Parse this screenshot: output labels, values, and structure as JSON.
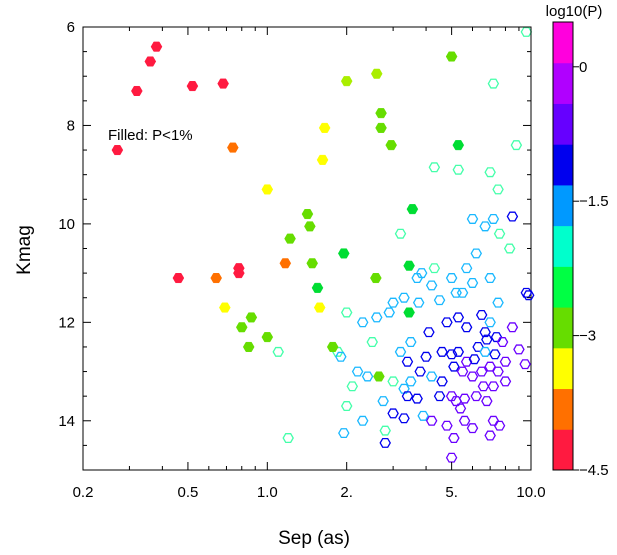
{
  "chart_data": {
    "type": "scatter",
    "xlabel": "Sep (as)",
    "ylabel": "Kmag",
    "xscale": "log",
    "xlim": [
      0.2,
      10.0
    ],
    "ylim": [
      15,
      6
    ],
    "x_ticks": [
      {
        "value": 0.2,
        "label": "0.2"
      },
      {
        "value": 0.5,
        "label": "0.5"
      },
      {
        "value": 1.0,
        "label": "1.0"
      },
      {
        "value": 2.0,
        "label": "2."
      },
      {
        "value": 5.0,
        "label": "5."
      },
      {
        "value": 10.0,
        "label": "10.0"
      }
    ],
    "y_ticks": [
      {
        "value": 6,
        "label": "6"
      },
      {
        "value": 8,
        "label": "8"
      },
      {
        "value": 10,
        "label": "10"
      },
      {
        "value": 12,
        "label": "12"
      },
      {
        "value": 14,
        "label": "14"
      }
    ],
    "annotation": "Filled: P<1%",
    "colorbar": {
      "title": "log10(P)",
      "range": [
        -4.5,
        0.5
      ],
      "ticks": [
        {
          "value": 0,
          "label": "0"
        },
        {
          "value": -1.5,
          "label": "−1.5"
        },
        {
          "value": -3,
          "label": "−3"
        },
        {
          "value": -4.5,
          "label": "−4.5"
        }
      ],
      "bands": [
        "#ff1a40",
        "#ff7000",
        "#ffff00",
        "#66dd00",
        "#00ff44",
        "#00ffcc",
        "#0099ff",
        "#0000ee",
        "#6600ff",
        "#b000ff",
        "#ff00dd"
      ]
    },
    "marker": "hexagon",
    "filled_points": [
      {
        "x": 0.27,
        "y": 8.5,
        "c": "#ff1a40"
      },
      {
        "x": 0.32,
        "y": 7.3,
        "c": "#ff1a40"
      },
      {
        "x": 0.36,
        "y": 6.7,
        "c": "#ff1a40"
      },
      {
        "x": 0.38,
        "y": 6.4,
        "c": "#ff1a40"
      },
      {
        "x": 0.46,
        "y": 11.1,
        "c": "#ff1a40"
      },
      {
        "x": 0.52,
        "y": 7.2,
        "c": "#ff1a40"
      },
      {
        "x": 0.64,
        "y": 11.1,
        "c": "#ff7000"
      },
      {
        "x": 0.68,
        "y": 7.15,
        "c": "#ff1a40"
      },
      {
        "x": 0.74,
        "y": 8.45,
        "c": "#ff7000"
      },
      {
        "x": 0.78,
        "y": 10.9,
        "c": "#ff1a40"
      },
      {
        "x": 0.78,
        "y": 11.0,
        "c": "#ff1a40"
      },
      {
        "x": 1.17,
        "y": 10.8,
        "c": "#ff7000"
      },
      {
        "x": 0.69,
        "y": 11.7,
        "c": "#ffff00"
      },
      {
        "x": 1.0,
        "y": 9.3,
        "c": "#ffff00"
      },
      {
        "x": 1.58,
        "y": 11.7,
        "c": "#ffff00"
      },
      {
        "x": 1.62,
        "y": 8.7,
        "c": "#ffff00"
      },
      {
        "x": 1.65,
        "y": 8.05,
        "c": "#ffff00"
      },
      {
        "x": 2.0,
        "y": 7.1,
        "c": "#aaee00"
      },
      {
        "x": 2.6,
        "y": 6.95,
        "c": "#aaee00"
      },
      {
        "x": 2.7,
        "y": 8.05,
        "c": "#66dd00"
      },
      {
        "x": 2.7,
        "y": 7.75,
        "c": "#66dd00"
      },
      {
        "x": 2.95,
        "y": 8.4,
        "c": "#66dd00"
      },
      {
        "x": 0.8,
        "y": 12.1,
        "c": "#66dd00"
      },
      {
        "x": 0.85,
        "y": 12.5,
        "c": "#66dd00"
      },
      {
        "x": 0.87,
        "y": 11.9,
        "c": "#66dd00"
      },
      {
        "x": 1.0,
        "y": 12.3,
        "c": "#66dd00"
      },
      {
        "x": 1.22,
        "y": 10.3,
        "c": "#66dd00"
      },
      {
        "x": 1.42,
        "y": 9.8,
        "c": "#66dd00"
      },
      {
        "x": 1.48,
        "y": 10.8,
        "c": "#66dd00"
      },
      {
        "x": 1.45,
        "y": 10.05,
        "c": "#66dd00"
      },
      {
        "x": 1.55,
        "y": 11.3,
        "c": "#00dd33"
      },
      {
        "x": 1.95,
        "y": 10.6,
        "c": "#00dd33"
      },
      {
        "x": 1.77,
        "y": 12.5,
        "c": "#66dd00"
      },
      {
        "x": 2.58,
        "y": 11.1,
        "c": "#66dd00"
      },
      {
        "x": 2.65,
        "y": 13.1,
        "c": "#66dd00"
      },
      {
        "x": 3.45,
        "y": 10.85,
        "c": "#00dd33"
      },
      {
        "x": 3.55,
        "y": 9.7,
        "c": "#00dd33"
      },
      {
        "x": 3.45,
        "y": 11.8,
        "c": "#00dd33"
      },
      {
        "x": 5.0,
        "y": 6.6,
        "c": "#66dd00"
      },
      {
        "x": 5.3,
        "y": 8.4,
        "c": "#00dd33"
      }
    ],
    "open_points": [
      {
        "x": 9.6,
        "y": 6.1,
        "c": "#44ffaa"
      },
      {
        "x": 7.2,
        "y": 7.15,
        "c": "#44ffaa"
      },
      {
        "x": 8.8,
        "y": 8.4,
        "c": "#44ffaa"
      },
      {
        "x": 5.3,
        "y": 8.9,
        "c": "#44ffaa"
      },
      {
        "x": 7.0,
        "y": 8.95,
        "c": "#44ffaa"
      },
      {
        "x": 4.3,
        "y": 8.85,
        "c": "#44ffaa"
      },
      {
        "x": 7.5,
        "y": 9.3,
        "c": "#44ffaa"
      },
      {
        "x": 6.0,
        "y": 9.9,
        "c": "#1ab8ff"
      },
      {
        "x": 6.7,
        "y": 10.05,
        "c": "#1ab8ff"
      },
      {
        "x": 7.2,
        "y": 9.9,
        "c": "#1ab8ff"
      },
      {
        "x": 8.5,
        "y": 9.85,
        "c": "#0000ee"
      },
      {
        "x": 7.6,
        "y": 10.2,
        "c": "#44ffaa"
      },
      {
        "x": 3.2,
        "y": 10.2,
        "c": "#44ffaa"
      },
      {
        "x": 8.3,
        "y": 10.5,
        "c": "#44ffaa"
      },
      {
        "x": 6.2,
        "y": 10.6,
        "c": "#1ab8ff"
      },
      {
        "x": 5.7,
        "y": 10.9,
        "c": "#1ab8ff"
      },
      {
        "x": 4.3,
        "y": 10.9,
        "c": "#44ffaa"
      },
      {
        "x": 3.7,
        "y": 11.1,
        "c": "#1ab8ff"
      },
      {
        "x": 3.85,
        "y": 11.0,
        "c": "#1ab8ff"
      },
      {
        "x": 4.2,
        "y": 11.25,
        "c": "#1ab8ff"
      },
      {
        "x": 3.0,
        "y": 11.6,
        "c": "#1ab8ff"
      },
      {
        "x": 3.3,
        "y": 11.5,
        "c": "#1ab8ff"
      },
      {
        "x": 2.9,
        "y": 11.8,
        "c": "#1ab8ff"
      },
      {
        "x": 2.6,
        "y": 11.9,
        "c": "#1ab8ff"
      },
      {
        "x": 2.0,
        "y": 11.8,
        "c": "#44ffaa"
      },
      {
        "x": 3.75,
        "y": 11.6,
        "c": "#1ab8ff"
      },
      {
        "x": 4.5,
        "y": 11.55,
        "c": "#1ab8ff"
      },
      {
        "x": 5.0,
        "y": 11.1,
        "c": "#1ab8ff"
      },
      {
        "x": 5.2,
        "y": 11.4,
        "c": "#1ab8ff"
      },
      {
        "x": 5.5,
        "y": 11.4,
        "c": "#1ab8ff"
      },
      {
        "x": 6.0,
        "y": 11.2,
        "c": "#1ab8ff"
      },
      {
        "x": 7.0,
        "y": 11.1,
        "c": "#1ab8ff"
      },
      {
        "x": 9.8,
        "y": 11.45,
        "c": "#0000ee"
      },
      {
        "x": 9.6,
        "y": 11.4,
        "c": "#0000ee"
      },
      {
        "x": 7.5,
        "y": 11.6,
        "c": "#1ab8ff"
      },
      {
        "x": 5.3,
        "y": 11.9,
        "c": "#0000ee"
      },
      {
        "x": 5.7,
        "y": 12.1,
        "c": "#0000ee"
      },
      {
        "x": 4.8,
        "y": 12.0,
        "c": "#0000ee"
      },
      {
        "x": 4.1,
        "y": 12.2,
        "c": "#0000ee"
      },
      {
        "x": 6.5,
        "y": 11.85,
        "c": "#0000ee"
      },
      {
        "x": 7.0,
        "y": 12.0,
        "c": "#1ab8ff"
      },
      {
        "x": 6.7,
        "y": 12.2,
        "c": "#0000ee"
      },
      {
        "x": 6.8,
        "y": 12.35,
        "c": "#0000ee"
      },
      {
        "x": 7.4,
        "y": 12.3,
        "c": "#0000ee"
      },
      {
        "x": 6.3,
        "y": 12.5,
        "c": "#0000ee"
      },
      {
        "x": 3.5,
        "y": 12.4,
        "c": "#1ab8ff"
      },
      {
        "x": 3.2,
        "y": 12.6,
        "c": "#1ab8ff"
      },
      {
        "x": 3.4,
        "y": 12.8,
        "c": "#0000ee"
      },
      {
        "x": 2.5,
        "y": 12.4,
        "c": "#44ffaa"
      },
      {
        "x": 2.3,
        "y": 12.0,
        "c": "#1ab8ff"
      },
      {
        "x": 1.85,
        "y": 12.6,
        "c": "#44ffaa"
      },
      {
        "x": 1.9,
        "y": 12.7,
        "c": "#1ab8ff"
      },
      {
        "x": 1.1,
        "y": 12.6,
        "c": "#44ffaa"
      },
      {
        "x": 4.0,
        "y": 12.7,
        "c": "#0000ee"
      },
      {
        "x": 4.6,
        "y": 12.6,
        "c": "#0000ee"
      },
      {
        "x": 5.0,
        "y": 12.65,
        "c": "#0000ee"
      },
      {
        "x": 5.3,
        "y": 12.6,
        "c": "#0000ee"
      },
      {
        "x": 5.1,
        "y": 12.9,
        "c": "#0000ee"
      },
      {
        "x": 5.7,
        "y": 12.8,
        "c": "#6a00ff"
      },
      {
        "x": 5.5,
        "y": 13.0,
        "c": "#6a00ff"
      },
      {
        "x": 6.1,
        "y": 12.75,
        "c": "#0000ee"
      },
      {
        "x": 6.7,
        "y": 12.6,
        "c": "#1ab8ff"
      },
      {
        "x": 7.3,
        "y": 12.65,
        "c": "#0000ee"
      },
      {
        "x": 7.8,
        "y": 12.4,
        "c": "#6a00ff"
      },
      {
        "x": 8.5,
        "y": 12.1,
        "c": "#6a00ff"
      },
      {
        "x": 9.0,
        "y": 12.55,
        "c": "#6a00ff"
      },
      {
        "x": 9.5,
        "y": 12.85,
        "c": "#6a00ff"
      },
      {
        "x": 3.8,
        "y": 13.0,
        "c": "#0000ee"
      },
      {
        "x": 4.2,
        "y": 13.1,
        "c": "#1ab8ff"
      },
      {
        "x": 3.5,
        "y": 13.2,
        "c": "#1ab8ff"
      },
      {
        "x": 3.3,
        "y": 13.35,
        "c": "#1ab8ff"
      },
      {
        "x": 3.0,
        "y": 13.2,
        "c": "#44ffaa"
      },
      {
        "x": 2.4,
        "y": 13.1,
        "c": "#1ab8ff"
      },
      {
        "x": 2.2,
        "y": 13.0,
        "c": "#1ab8ff"
      },
      {
        "x": 2.1,
        "y": 13.3,
        "c": "#44ffaa"
      },
      {
        "x": 4.6,
        "y": 13.2,
        "c": "#0000ee"
      },
      {
        "x": 4.5,
        "y": 13.5,
        "c": "#0000ee"
      },
      {
        "x": 3.7,
        "y": 13.55,
        "c": "#0000ee"
      },
      {
        "x": 3.4,
        "y": 13.5,
        "c": "#0000ee"
      },
      {
        "x": 6.0,
        "y": 13.1,
        "c": "#6a00ff"
      },
      {
        "x": 6.5,
        "y": 13.0,
        "c": "#6a00ff"
      },
      {
        "x": 7.0,
        "y": 12.9,
        "c": "#6a00ff"
      },
      {
        "x": 7.5,
        "y": 13.0,
        "c": "#6a00ff"
      },
      {
        "x": 8.0,
        "y": 12.8,
        "c": "#6a00ff"
      },
      {
        "x": 7.2,
        "y": 13.3,
        "c": "#6a00ff"
      },
      {
        "x": 6.6,
        "y": 13.3,
        "c": "#6a00ff"
      },
      {
        "x": 8.0,
        "y": 13.2,
        "c": "#6a00ff"
      },
      {
        "x": 6.2,
        "y": 13.5,
        "c": "#6a00ff"
      },
      {
        "x": 5.6,
        "y": 13.55,
        "c": "#6a00ff"
      },
      {
        "x": 5.2,
        "y": 13.6,
        "c": "#6a00ff"
      },
      {
        "x": 5.0,
        "y": 13.5,
        "c": "#6a00ff"
      },
      {
        "x": 5.4,
        "y": 13.75,
        "c": "#6a00ff"
      },
      {
        "x": 6.8,
        "y": 13.6,
        "c": "#6a00ff"
      },
      {
        "x": 2.0,
        "y": 13.7,
        "c": "#44ffaa"
      },
      {
        "x": 2.75,
        "y": 13.6,
        "c": "#1ab8ff"
      },
      {
        "x": 3.0,
        "y": 13.85,
        "c": "#0000ee"
      },
      {
        "x": 3.3,
        "y": 13.95,
        "c": "#0000ee"
      },
      {
        "x": 3.9,
        "y": 13.9,
        "c": "#1ab8ff"
      },
      {
        "x": 4.2,
        "y": 14.0,
        "c": "#6a00ff"
      },
      {
        "x": 2.3,
        "y": 14.0,
        "c": "#1ab8ff"
      },
      {
        "x": 2.8,
        "y": 14.2,
        "c": "#44ffaa"
      },
      {
        "x": 1.2,
        "y": 14.35,
        "c": "#44ffaa"
      },
      {
        "x": 1.95,
        "y": 14.25,
        "c": "#1ab8ff"
      },
      {
        "x": 2.8,
        "y": 14.45,
        "c": "#0000ee"
      },
      {
        "x": 4.8,
        "y": 14.1,
        "c": "#6a00ff"
      },
      {
        "x": 5.6,
        "y": 14.0,
        "c": "#6a00ff"
      },
      {
        "x": 6.0,
        "y": 14.15,
        "c": "#6a00ff"
      },
      {
        "x": 7.2,
        "y": 14.0,
        "c": "#6a00ff"
      },
      {
        "x": 7.6,
        "y": 14.1,
        "c": "#6a00ff"
      },
      {
        "x": 7.0,
        "y": 14.3,
        "c": "#6a00ff"
      },
      {
        "x": 5.1,
        "y": 14.35,
        "c": "#6a00ff"
      },
      {
        "x": 5.0,
        "y": 14.75,
        "c": "#6a00ff"
      }
    ]
  }
}
